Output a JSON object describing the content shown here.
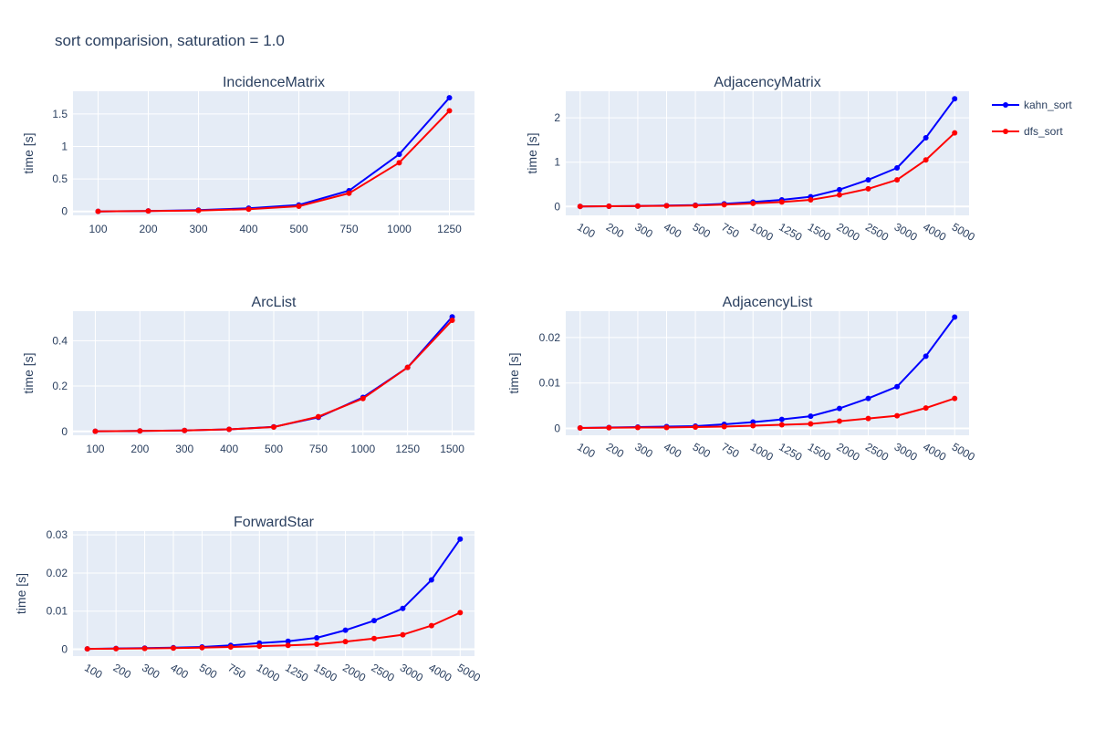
{
  "title": "sort comparision, saturation = 1.0",
  "legend": {
    "placement": "top-right",
    "entries": [
      {
        "name": "kahn_sort",
        "color": "#0000ff"
      },
      {
        "name": "dfs_sort",
        "color": "#ff0000"
      }
    ]
  },
  "style": {
    "plot_bg": "#e5ecf6",
    "grid_color": "#ffffff",
    "text_color": "#2a3f5f"
  },
  "chart_data": [
    {
      "type": "line",
      "title": "IncidenceMatrix",
      "xlabel": "",
      "ylabel": "time [s]",
      "x_axis": "category",
      "tick_angle": 0,
      "categories": [
        "100",
        "200",
        "300",
        "400",
        "500",
        "750",
        "1000",
        "1250"
      ],
      "yticks": [
        0,
        0.5,
        1,
        1.5
      ],
      "ytick_labels": [
        "0",
        "0.5",
        "1",
        "1.5"
      ],
      "ylim": [
        -0.06,
        1.85
      ],
      "grid": true,
      "series": [
        {
          "name": "kahn_sort",
          "color": "#0000ff",
          "values": [
            0.001,
            0.008,
            0.02,
            0.05,
            0.1,
            0.32,
            0.88,
            1.75
          ]
        },
        {
          "name": "dfs_sort",
          "color": "#ff0000",
          "values": [
            0.001,
            0.006,
            0.015,
            0.035,
            0.08,
            0.28,
            0.75,
            1.55
          ]
        }
      ]
    },
    {
      "type": "line",
      "title": "AdjacencyMatrix",
      "xlabel": "",
      "ylabel": "time [s]",
      "x_axis": "category",
      "tick_angle": 30,
      "categories": [
        "100",
        "200",
        "300",
        "400",
        "500",
        "750",
        "1000",
        "1250",
        "1500",
        "2000",
        "2500",
        "3000",
        "4000",
        "5000"
      ],
      "yticks": [
        0,
        1,
        2
      ],
      "ytick_labels": [
        "0",
        "1",
        "2"
      ],
      "ylim": [
        -0.2,
        2.6
      ],
      "grid": true,
      "series": [
        {
          "name": "kahn_sort",
          "color": "#0000ff",
          "values": [
            0.002,
            0.006,
            0.012,
            0.02,
            0.03,
            0.06,
            0.1,
            0.15,
            0.22,
            0.38,
            0.6,
            0.87,
            1.55,
            2.43
          ]
        },
        {
          "name": "dfs_sort",
          "color": "#ff0000",
          "values": [
            0.002,
            0.005,
            0.009,
            0.015,
            0.022,
            0.04,
            0.07,
            0.1,
            0.15,
            0.26,
            0.4,
            0.6,
            1.05,
            1.66
          ]
        }
      ]
    },
    {
      "type": "line",
      "title": "ArcList",
      "xlabel": "",
      "ylabel": "time [s]",
      "x_axis": "category",
      "tick_angle": 0,
      "categories": [
        "100",
        "200",
        "300",
        "400",
        "500",
        "750",
        "1000",
        "1250",
        "1500"
      ],
      "yticks": [
        0,
        0.2,
        0.4
      ],
      "ytick_labels": [
        "0",
        "0.2",
        "0.4"
      ],
      "ylim": [
        -0.017,
        0.53
      ],
      "grid": true,
      "series": [
        {
          "name": "kahn_sort",
          "color": "#0000ff",
          "values": [
            0.0005,
            0.002,
            0.004,
            0.009,
            0.02,
            0.062,
            0.15,
            0.282,
            0.505
          ]
        },
        {
          "name": "dfs_sort",
          "color": "#ff0000",
          "values": [
            0.0005,
            0.002,
            0.004,
            0.009,
            0.019,
            0.065,
            0.145,
            0.282,
            0.49
          ]
        }
      ]
    },
    {
      "type": "line",
      "title": "AdjacencyList",
      "xlabel": "",
      "ylabel": "time [s]",
      "x_axis": "category",
      "tick_angle": 30,
      "categories": [
        "100",
        "200",
        "300",
        "400",
        "500",
        "750",
        "1000",
        "1250",
        "1500",
        "2000",
        "2500",
        "3000",
        "4000",
        "5000"
      ],
      "yticks": [
        0,
        0.01,
        0.02
      ],
      "ytick_labels": [
        "0",
        "0.01",
        "0.02"
      ],
      "ylim": [
        -0.0015,
        0.0258
      ],
      "grid": true,
      "series": [
        {
          "name": "kahn_sort",
          "color": "#0000ff",
          "values": [
            0.0001,
            0.0002,
            0.0003,
            0.0004,
            0.0005,
            0.0009,
            0.0014,
            0.002,
            0.0027,
            0.0044,
            0.0066,
            0.0092,
            0.0159,
            0.0245
          ]
        },
        {
          "name": "dfs_sort",
          "color": "#ff0000",
          "values": [
            0.0001,
            0.00015,
            0.0002,
            0.0002,
            0.0003,
            0.0004,
            0.0006,
            0.0008,
            0.001,
            0.0016,
            0.0022,
            0.0028,
            0.0045,
            0.0066
          ]
        }
      ]
    },
    {
      "type": "line",
      "title": "ForwardStar",
      "xlabel": "",
      "ylabel": "time [s]",
      "x_axis": "category",
      "tick_angle": 30,
      "categories": [
        "100",
        "200",
        "300",
        "400",
        "500",
        "750",
        "1000",
        "1250",
        "1500",
        "2000",
        "2500",
        "3000",
        "4000",
        "5000"
      ],
      "yticks": [
        0,
        0.01,
        0.02,
        0.03
      ],
      "ytick_labels": [
        "0",
        "0.01",
        "0.02",
        "0.03"
      ],
      "ylim": [
        -0.0018,
        0.031
      ],
      "grid": true,
      "series": [
        {
          "name": "kahn_sort",
          "color": "#0000ff",
          "values": [
            0.0001,
            0.0002,
            0.0003,
            0.0004,
            0.0006,
            0.001,
            0.0016,
            0.0021,
            0.003,
            0.005,
            0.0075,
            0.0107,
            0.0182,
            0.0289
          ]
        },
        {
          "name": "dfs_sort",
          "color": "#ff0000",
          "values": [
            0.0001,
            0.00015,
            0.0002,
            0.0003,
            0.0004,
            0.0006,
            0.0008,
            0.001,
            0.0013,
            0.002,
            0.0028,
            0.0038,
            0.0062,
            0.0096
          ]
        }
      ]
    }
  ]
}
